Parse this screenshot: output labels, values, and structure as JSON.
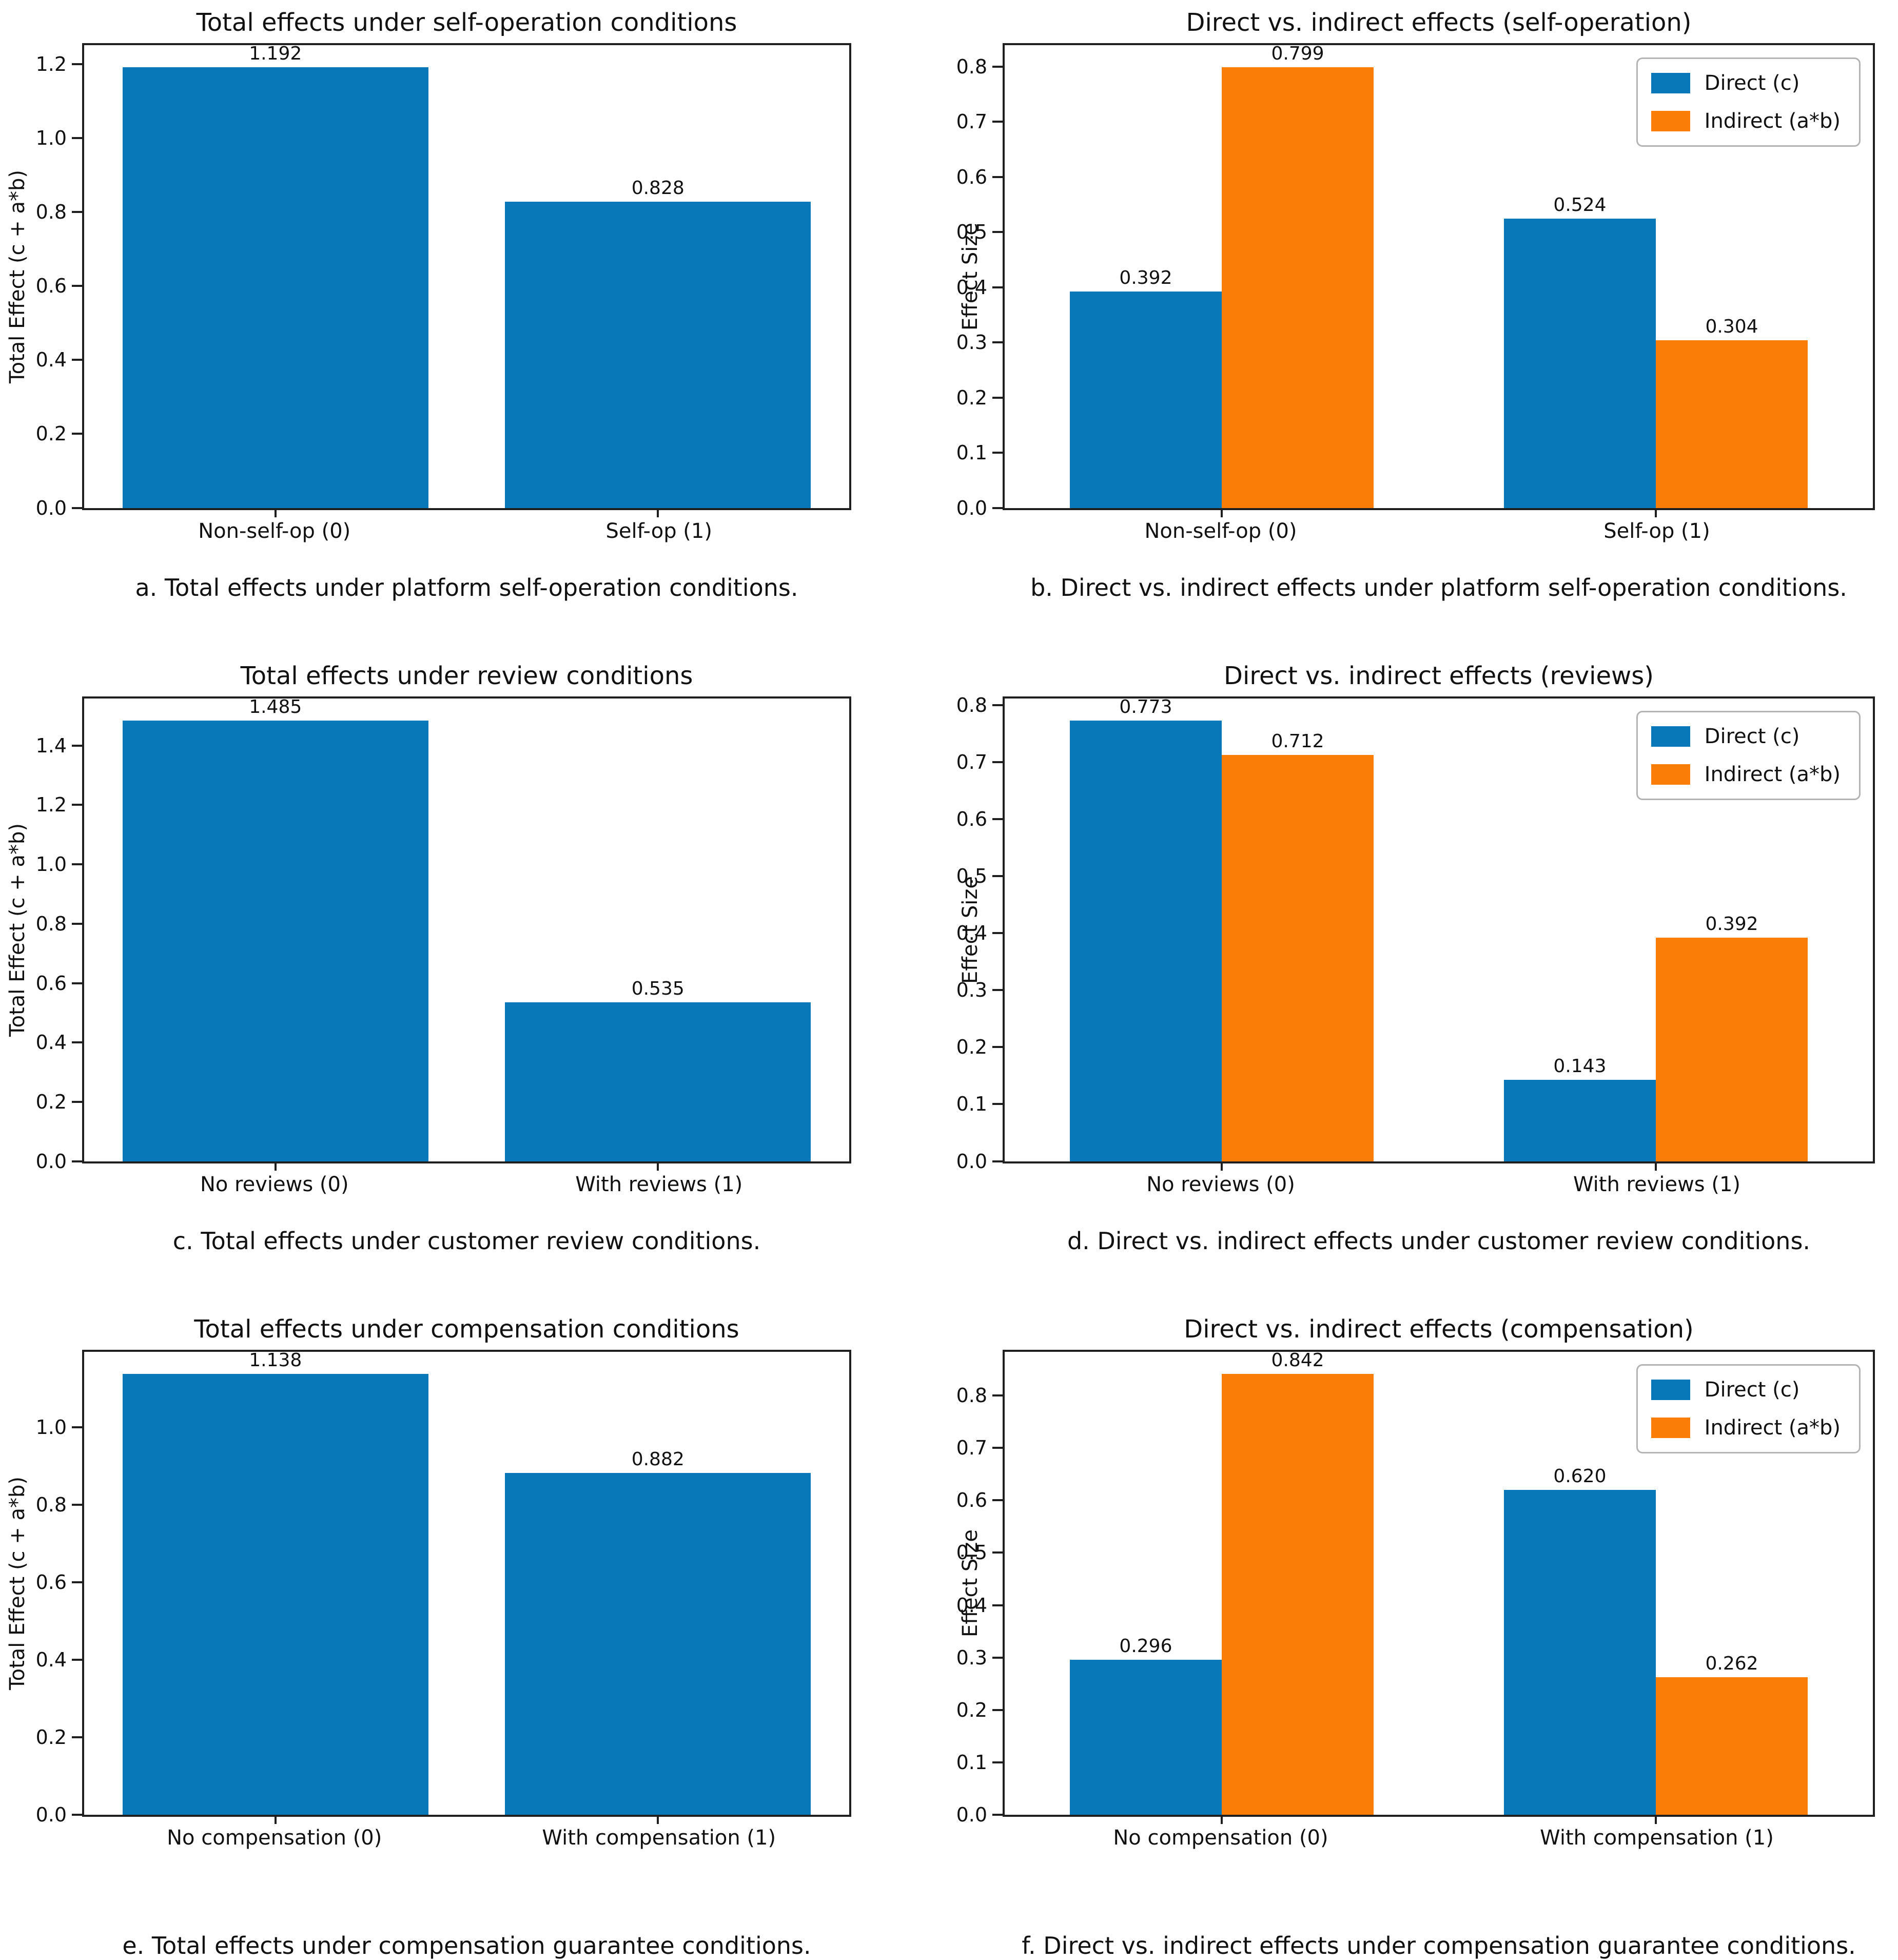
{
  "figure": {
    "background": "#ffffff",
    "text_color": "#111111",
    "axis_color": "#1f1f1f",
    "grid": "off"
  },
  "colors": {
    "direct_blue": "#0878b8",
    "indirect_orange": "#f97d06"
  },
  "chart_data": [
    {
      "key": "a",
      "type": "bar",
      "grouped": false,
      "title": "Total effects under self-operation conditions",
      "ylabel": "Total Effect (c + a*b)",
      "categories": [
        "Non-self-op (0)",
        "Self-op (1)"
      ],
      "values": [
        1.192,
        0.828
      ],
      "value_labels": [
        "1.192",
        "0.828"
      ],
      "bar_color": "#0878b8",
      "ylim": [
        0,
        1.2516
      ],
      "yticks": [
        "0.0",
        "0.2",
        "0.4",
        "0.6",
        "0.8",
        "1.0",
        "1.2"
      ],
      "caption": "a. Total effects under platform self-operation conditions."
    },
    {
      "key": "b",
      "type": "bar",
      "grouped": true,
      "title": "Direct vs. indirect effects (self-operation)",
      "ylabel": "Effect Size",
      "categories": [
        "Non-self-op (0)",
        "Self-op (1)"
      ],
      "series": [
        {
          "name": "Direct (c)",
          "color": "#0878b8",
          "values": [
            0.392,
            0.524
          ],
          "value_labels": [
            "0.392",
            "0.524"
          ]
        },
        {
          "name": "Indirect (a*b)",
          "color": "#f97d06",
          "values": [
            0.799,
            0.304
          ],
          "value_labels": [
            "0.799",
            "0.304"
          ]
        }
      ],
      "legend": {
        "position": "upper right",
        "labels": [
          "Direct (c)",
          "Indirect (a*b)"
        ]
      },
      "ylim": [
        0,
        0.839
      ],
      "yticks": [
        "0.0",
        "0.1",
        "0.2",
        "0.3",
        "0.4",
        "0.5",
        "0.6",
        "0.7",
        "0.8"
      ],
      "caption": "b. Direct vs. indirect effects under platform self-operation conditions."
    },
    {
      "key": "c",
      "type": "bar",
      "grouped": false,
      "title": "Total effects under review conditions",
      "ylabel": "Total Effect (c + a*b)",
      "categories": [
        "No reviews (0)",
        "With reviews (1)"
      ],
      "values": [
        1.485,
        0.535
      ],
      "value_labels": [
        "1.485",
        "0.535"
      ],
      "bar_color": "#0878b8",
      "ylim": [
        0,
        1.5593
      ],
      "yticks": [
        "0.0",
        "0.2",
        "0.4",
        "0.6",
        "0.8",
        "1.0",
        "1.2",
        "1.4"
      ],
      "caption": "c. Total effects under customer review conditions."
    },
    {
      "key": "d",
      "type": "bar",
      "grouped": true,
      "title": "Direct vs. indirect effects (reviews)",
      "ylabel": "Effect Size",
      "categories": [
        "No reviews (0)",
        "With reviews (1)"
      ],
      "series": [
        {
          "name": "Direct (c)",
          "color": "#0878b8",
          "values": [
            0.773,
            0.143
          ],
          "value_labels": [
            "0.773",
            "0.143"
          ]
        },
        {
          "name": "Indirect (a*b)",
          "color": "#f97d06",
          "values": [
            0.712,
            0.392
          ],
          "value_labels": [
            "0.712",
            "0.392"
          ]
        }
      ],
      "legend": {
        "position": "upper right",
        "labels": [
          "Direct (c)",
          "Indirect (a*b)"
        ]
      },
      "ylim": [
        0,
        0.8117
      ],
      "yticks": [
        "0.0",
        "0.1",
        "0.2",
        "0.3",
        "0.4",
        "0.5",
        "0.6",
        "0.7",
        "0.8"
      ],
      "caption": "d. Direct vs. indirect effects under customer review conditions."
    },
    {
      "key": "e",
      "type": "bar",
      "grouped": false,
      "title": "Total effects under compensation conditions",
      "ylabel": "Total Effect (c + a*b)",
      "categories": [
        "No compensation (0)",
        "With compensation (1)"
      ],
      "values": [
        1.138,
        0.882
      ],
      "value_labels": [
        "1.138",
        "0.882"
      ],
      "bar_color": "#0878b8",
      "ylim": [
        0,
        1.1949
      ],
      "yticks": [
        "0.0",
        "0.2",
        "0.4",
        "0.6",
        "0.8",
        "1.0"
      ],
      "caption": "e. Total effects under compensation guarantee conditions."
    },
    {
      "key": "f",
      "type": "bar",
      "grouped": true,
      "title": "Direct vs. indirect effects (compensation)",
      "ylabel": "Effect Size",
      "categories": [
        "No compensation (0)",
        "With compensation (1)"
      ],
      "series": [
        {
          "name": "Direct (c)",
          "color": "#0878b8",
          "values": [
            0.296,
            0.62
          ],
          "value_labels": [
            "0.296",
            "0.620"
          ]
        },
        {
          "name": "Indirect (a*b)",
          "color": "#f97d06",
          "values": [
            0.842,
            0.262
          ],
          "value_labels": [
            "0.842",
            "0.262"
          ]
        }
      ],
      "legend": {
        "position": "upper right",
        "labels": [
          "Direct (c)",
          "Indirect (a*b)"
        ]
      },
      "ylim": [
        0,
        0.8841
      ],
      "yticks": [
        "0.0",
        "0.1",
        "0.2",
        "0.3",
        "0.4",
        "0.5",
        "0.6",
        "0.7",
        "0.8"
      ],
      "caption": "f. Direct vs. indirect effects under compensation guarantee conditions."
    }
  ]
}
